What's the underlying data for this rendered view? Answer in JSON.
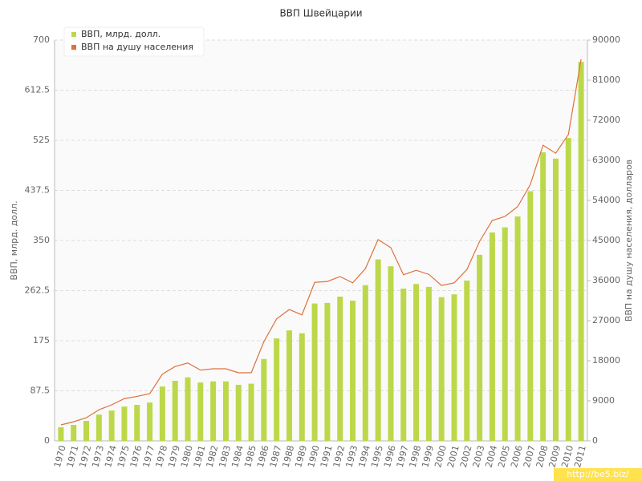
{
  "chart_data": {
    "type": "bar_line",
    "title": "ВВП Швейцарии",
    "ylabel": "ВВП, млрд. долл.",
    "y2label": "ВВП на душу населения, долларов",
    "watermark": "http://be5.biz/",
    "categories": [
      "1970",
      "1971",
      "1972",
      "1973",
      "1974",
      "1975",
      "1976",
      "1977",
      "1978",
      "1979",
      "1980",
      "1981",
      "1982",
      "1983",
      "1984",
      "1985",
      "1986",
      "1987",
      "1988",
      "1989",
      "1990",
      "1991",
      "1992",
      "1993",
      "1994",
      "1995",
      "1996",
      "1997",
      "1998",
      "1999",
      "2000",
      "2001",
      "2002",
      "2003",
      "2004",
      "2005",
      "2006",
      "2007",
      "2008",
      "2009",
      "2010",
      "2011"
    ],
    "series": [
      {
        "name": "ВВП, млрд. долл.",
        "color": "#bcd84a",
        "kind": "bar",
        "values": [
          24,
          28,
          35,
          46,
          53,
          60,
          63,
          67,
          95,
          105,
          111,
          102,
          104,
          104,
          98,
          100,
          143,
          179,
          193,
          188,
          240,
          241,
          252,
          245,
          272,
          317,
          305,
          266,
          274,
          269,
          251,
          256,
          280,
          325,
          364,
          373,
          392,
          436,
          504,
          493,
          529,
          662
        ]
      },
      {
        "name": "ВВП на душу населения",
        "color": "#e0703a",
        "kind": "line",
        "axis": "y2",
        "values": [
          3600,
          4300,
          5200,
          7000,
          8100,
          9500,
          10000,
          10600,
          15000,
          16700,
          17500,
          15900,
          16200,
          16200,
          15300,
          15300,
          22300,
          27400,
          29500,
          28300,
          35600,
          35800,
          36900,
          35500,
          38700,
          45200,
          43400,
          37300,
          38300,
          37400,
          34900,
          35500,
          38500,
          44800,
          49500,
          50400,
          52600,
          57600,
          66400,
          64600,
          68800,
          85700
        ]
      }
    ],
    "ylim": [
      0,
      700
    ],
    "yticks": [
      0,
      87.5,
      175,
      262.5,
      350,
      437.5,
      525,
      612.5,
      700
    ],
    "y2lim": [
      0,
      90000
    ],
    "y2ticks": [
      0,
      9000,
      18000,
      27000,
      36000,
      45000,
      54000,
      63000,
      72000,
      81000,
      90000
    ],
    "grid": true,
    "legend": "top-left"
  }
}
